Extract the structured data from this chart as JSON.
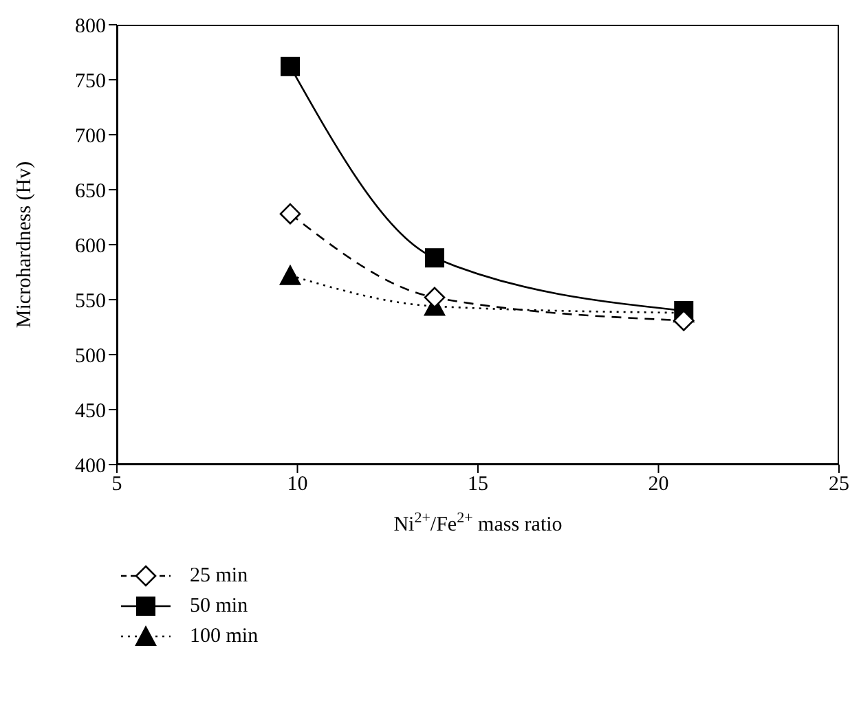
{
  "chart_data": {
    "type": "line",
    "xlabel": "Ni$^{2+}$/Fe$^{2+}$ mass ratio",
    "ylabel": "Microhardness (Hv)",
    "x": [
      9.8,
      13.8,
      20.7
    ],
    "xlim": [
      5,
      25
    ],
    "xticks": [
      5,
      10,
      15,
      20,
      25
    ],
    "ylim": [
      400,
      800
    ],
    "yticks": [
      400,
      450,
      500,
      550,
      600,
      650,
      700,
      750,
      800
    ],
    "grid": false,
    "legend": "bottom left",
    "series": [
      {
        "name": "25 min",
        "color": "#000000",
        "values": [
          628,
          552,
          531
        ],
        "marker": "diamond",
        "line_style": "dashed"
      },
      {
        "name": "50 min",
        "color": "#000000",
        "values": [
          762,
          588,
          540
        ],
        "marker": "square",
        "line_style": "solid"
      },
      {
        "name": "100 min",
        "color": "#000000",
        "values": [
          572,
          544,
          538
        ],
        "marker": "triangle",
        "line_style": "dotted"
      }
    ]
  }
}
